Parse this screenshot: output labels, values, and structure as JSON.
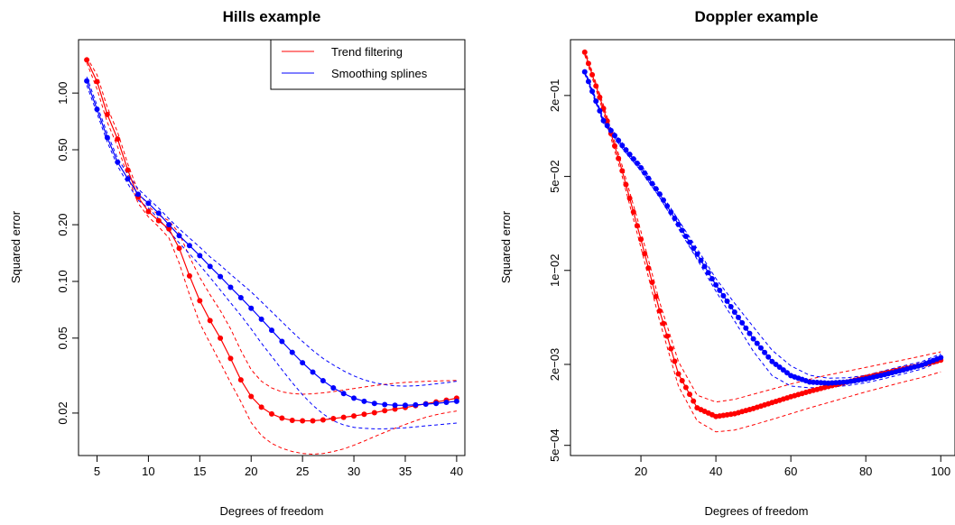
{
  "chart_data": [
    {
      "type": "line",
      "title": "Hills example",
      "xlabel": "Degrees of freedom",
      "ylabel": "Squared error",
      "y_scale": "log",
      "xlim": [
        3.2,
        40.8
      ],
      "ylim": [
        0.0119,
        1.92
      ],
      "x_ticks": [
        5,
        10,
        15,
        20,
        25,
        30,
        35,
        40
      ],
      "y_ticks": [
        0.02,
        0.05,
        0.1,
        0.2,
        0.5,
        1.0
      ],
      "y_tick_labels": [
        "0.02",
        "0.05",
        "0.10",
        "0.20",
        "0.50",
        "1.00"
      ],
      "legend": {
        "position": "top-right",
        "entries": [
          "Trend filtering",
          "Smoothing splines"
        ]
      },
      "series": [
        {
          "name": "Trend filtering",
          "color": "#ff0000",
          "x": [
            4,
            5,
            6,
            7,
            8,
            9,
            10,
            11,
            12,
            13,
            14,
            15,
            16,
            17,
            18,
            19,
            20,
            21,
            22,
            23,
            24,
            25,
            26,
            27,
            28,
            29,
            30,
            31,
            32,
            33,
            34,
            35,
            36,
            37,
            38,
            39,
            40
          ],
          "y": [
            1.5,
            1.15,
            0.77,
            0.57,
            0.39,
            0.28,
            0.235,
            0.21,
            0.19,
            0.15,
            0.107,
            0.079,
            0.062,
            0.05,
            0.039,
            0.03,
            0.0245,
            0.0215,
            0.0198,
            0.0188,
            0.0183,
            0.0182,
            0.0182,
            0.0184,
            0.0187,
            0.019,
            0.0193,
            0.0197,
            0.0201,
            0.0206,
            0.021,
            0.0214,
            0.0219,
            0.0224,
            0.0229,
            0.0234,
            0.024
          ],
          "lower": [
            1.45,
            1.05,
            0.7,
            0.52,
            0.36,
            0.26,
            0.22,
            0.195,
            0.17,
            0.125,
            0.085,
            0.06,
            0.047,
            0.037,
            0.029,
            0.023,
            0.0178,
            0.0152,
            0.0138,
            0.013,
            0.0125,
            0.0122,
            0.0121,
            0.0122,
            0.0125,
            0.0129,
            0.0135,
            0.0142,
            0.015,
            0.0158,
            0.0166,
            0.0174,
            0.0182,
            0.019,
            0.0196,
            0.0201,
            0.0205
          ],
          "upper": [
            1.55,
            1.25,
            0.84,
            0.62,
            0.42,
            0.3,
            0.25,
            0.225,
            0.21,
            0.18,
            0.135,
            0.105,
            0.085,
            0.07,
            0.056,
            0.043,
            0.034,
            0.0295,
            0.0272,
            0.0259,
            0.0254,
            0.0252,
            0.0253,
            0.0256,
            0.026,
            0.0265,
            0.027,
            0.0275,
            0.028,
            0.0284,
            0.0288,
            0.0291,
            0.0293,
            0.0295,
            0.0296,
            0.0297,
            0.0298
          ]
        },
        {
          "name": "Smoothing splines",
          "color": "#0000ff",
          "x": [
            4,
            5,
            6,
            7,
            8,
            9,
            10,
            11,
            12,
            13,
            14,
            15,
            16,
            17,
            18,
            19,
            20,
            21,
            22,
            23,
            24,
            25,
            26,
            27,
            28,
            29,
            30,
            31,
            32,
            33,
            34,
            35,
            36,
            37,
            38,
            39,
            40
          ],
          "y": [
            1.16,
            0.82,
            0.58,
            0.43,
            0.35,
            0.29,
            0.26,
            0.23,
            0.2,
            0.175,
            0.155,
            0.137,
            0.12,
            0.106,
            0.093,
            0.082,
            0.072,
            0.063,
            0.055,
            0.048,
            0.042,
            0.037,
            0.033,
            0.0297,
            0.0272,
            0.0254,
            0.024,
            0.0231,
            0.0225,
            0.0222,
            0.022,
            0.022,
            0.0221,
            0.0223,
            0.0225,
            0.0228,
            0.0231
          ],
          "lower": [
            1.1,
            0.78,
            0.55,
            0.41,
            0.33,
            0.27,
            0.245,
            0.215,
            0.185,
            0.16,
            0.14,
            0.122,
            0.105,
            0.09,
            0.077,
            0.066,
            0.056,
            0.047,
            0.04,
            0.034,
            0.029,
            0.025,
            0.022,
            0.0198,
            0.0182,
            0.0173,
            0.0168,
            0.0166,
            0.0165,
            0.0165,
            0.0166,
            0.0167,
            0.0169,
            0.0171,
            0.0173,
            0.0175,
            0.0177
          ],
          "upper": [
            1.22,
            0.86,
            0.61,
            0.45,
            0.37,
            0.31,
            0.275,
            0.245,
            0.215,
            0.19,
            0.17,
            0.152,
            0.135,
            0.122,
            0.109,
            0.098,
            0.088,
            0.078,
            0.069,
            0.061,
            0.054,
            0.048,
            0.043,
            0.039,
            0.036,
            0.0335,
            0.0315,
            0.03,
            0.029,
            0.0283,
            0.0279,
            0.0278,
            0.0279,
            0.0282,
            0.0286,
            0.029,
            0.0295
          ]
        }
      ]
    },
    {
      "type": "line",
      "title": "Doppler example",
      "xlabel": "Degrees of freedom",
      "ylabel": "Squared error",
      "y_scale": "log",
      "xlim": [
        1.2,
        103.8
      ],
      "ylim": [
        0.00042,
        0.52
      ],
      "x_ticks": [
        20,
        40,
        60,
        80,
        100
      ],
      "y_ticks": [
        0.0005,
        0.002,
        0.01,
        0.05,
        0.2
      ],
      "y_tick_labels": [
        "5e−04",
        "2e−03",
        "1e−02",
        "5e−02",
        "2e−01"
      ],
      "legend": null,
      "series": [
        {
          "name": "Trend filtering",
          "color": "#ff0000",
          "x": [
            5,
            10,
            15,
            20,
            25,
            30,
            35,
            40,
            45,
            50,
            55,
            60,
            65,
            70,
            75,
            80,
            85,
            90,
            95,
            100
          ],
          "y": [
            0.42,
            0.16,
            0.055,
            0.017,
            0.005,
            0.0017,
            0.00095,
            0.00082,
            0.00086,
            0.00094,
            0.00104,
            0.00115,
            0.00126,
            0.00137,
            0.00148,
            0.0016,
            0.00172,
            0.00185,
            0.00198,
            0.00215
          ],
          "lower": [
            0.4,
            0.15,
            0.05,
            0.0148,
            0.0042,
            0.00138,
            0.00076,
            0.00063,
            0.00065,
            0.00071,
            0.00078,
            0.00086,
            0.00095,
            0.00104,
            0.00114,
            0.00125,
            0.00136,
            0.00148,
            0.0016,
            0.00176
          ],
          "upper": [
            0.44,
            0.17,
            0.06,
            0.0195,
            0.0058,
            0.0021,
            0.00118,
            0.00105,
            0.0011,
            0.0012,
            0.00131,
            0.00143,
            0.00155,
            0.00167,
            0.00178,
            0.0019,
            0.00203,
            0.00216,
            0.00231,
            0.00248
          ]
        },
        {
          "name": "Smoothing splines",
          "color": "#0000ff",
          "x": [
            5,
            10,
            15,
            20,
            25,
            30,
            35,
            40,
            45,
            50,
            55,
            60,
            65,
            70,
            75,
            80,
            85,
            90,
            95,
            100
          ],
          "y": [
            0.3,
            0.13,
            0.085,
            0.058,
            0.037,
            0.022,
            0.0132,
            0.0078,
            0.0049,
            0.0031,
            0.0021,
            0.00165,
            0.00148,
            0.00145,
            0.00148,
            0.00156,
            0.00168,
            0.00182,
            0.00198,
            0.00225
          ],
          "lower": [
            0.29,
            0.125,
            0.081,
            0.055,
            0.035,
            0.0205,
            0.0121,
            0.007,
            0.0042,
            0.0025,
            0.00165,
            0.00138,
            0.00134,
            0.00135,
            0.00139,
            0.00146,
            0.00157,
            0.0017,
            0.00185,
            0.0021
          ],
          "upper": [
            0.31,
            0.135,
            0.089,
            0.061,
            0.039,
            0.0237,
            0.0145,
            0.0087,
            0.0057,
            0.0038,
            0.00255,
            0.00195,
            0.00166,
            0.00158,
            0.00159,
            0.00166,
            0.0018,
            0.00195,
            0.0021,
            0.0024
          ]
        }
      ]
    }
  ]
}
